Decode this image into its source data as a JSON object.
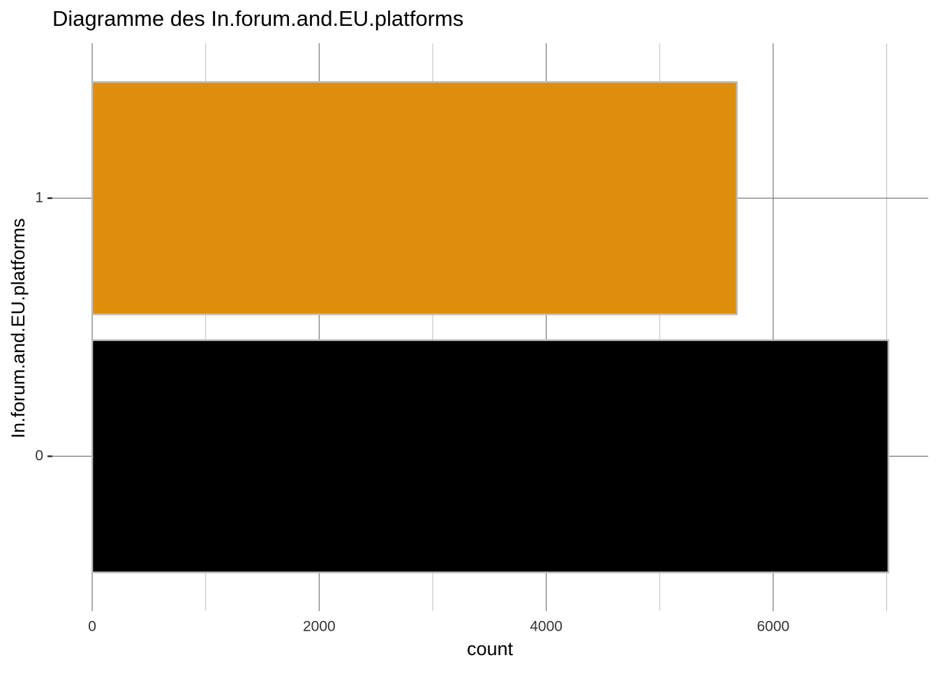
{
  "chart_data": {
    "type": "barh",
    "title": "Diagramme des In.forum.and.EU.platforms",
    "x_label": "count",
    "y_label": "In.forum.and.EU.platforms",
    "categories": [
      "0",
      "1"
    ],
    "values": [
      7015,
      5680
    ],
    "colors": [
      "#000000",
      "#de8e0a"
    ],
    "xlim": [
      -351,
      7366
    ],
    "xticks": [
      0,
      2000,
      4000,
      6000
    ],
    "x_minor_grid": [
      1000,
      3000,
      5000,
      7000
    ],
    "grid": true
  }
}
